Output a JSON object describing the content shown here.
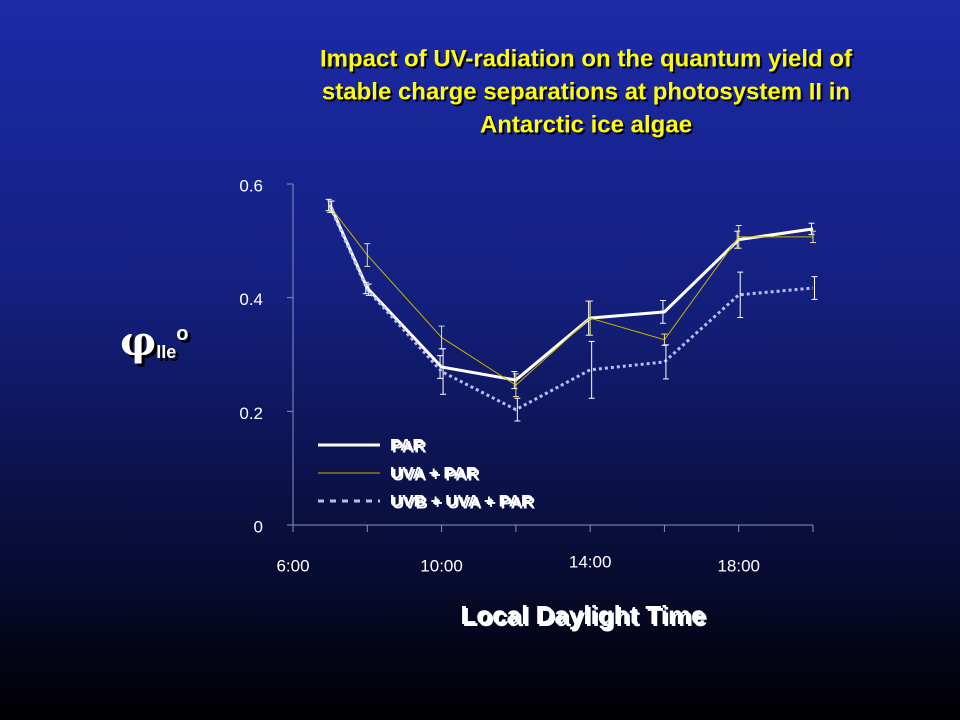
{
  "chart_data": {
    "type": "line",
    "title": [
      "Impact of UV-radiation on the quantum yield of",
      "stable charge separations at photosystem II in",
      "Antarctic ice algae"
    ],
    "xlabel": "Local Daylight Time",
    "ylabel": {
      "symbol": "φ",
      "subscript": "IIe",
      "superscript": "o"
    },
    "x": [
      7,
      8,
      10,
      12,
      14,
      16,
      18,
      20
    ],
    "xlim": [
      6,
      20
    ],
    "xticks": [
      {
        "value": 6,
        "label": "6:00"
      },
      {
        "value": 10,
        "label": "10:00"
      },
      {
        "value": 14,
        "label": "14:00"
      },
      {
        "value": 18,
        "label": "18:00"
      }
    ],
    "xminorticks": [
      8,
      12,
      16,
      20
    ],
    "ylim": [
      0,
      0.6
    ],
    "yticks": [
      0,
      0.2,
      0.4,
      0.6
    ],
    "legend_position": "lower left",
    "series": [
      {
        "name": "PAR",
        "color": "#ffffff",
        "style": "solid",
        "width": 3,
        "values": [
          0.563,
          0.417,
          0.278,
          0.255,
          0.364,
          0.375,
          0.502,
          0.521
        ],
        "errors": [
          0.01,
          0.01,
          0.02,
          0.015,
          0.03,
          0.02,
          0.015,
          0.01
        ]
      },
      {
        "name": "UVA + PAR",
        "color": "#c8b400",
        "style": "solid",
        "width": 1,
        "values": [
          0.56,
          0.475,
          0.33,
          0.246,
          0.364,
          0.326,
          0.507,
          0.507
        ],
        "errors": [
          0.01,
          0.02,
          0.02,
          0.02,
          0.03,
          0.01,
          0.02,
          0.01
        ]
      },
      {
        "name": "UVB + UVA + PAR",
        "color": "#b8bff0",
        "style": "dotted",
        "width": 3,
        "values": [
          0.56,
          0.414,
          0.27,
          0.203,
          0.273,
          0.287,
          0.405,
          0.417
        ],
        "errors": [
          0.01,
          0.01,
          0.04,
          0.02,
          0.05,
          0.03,
          0.04,
          0.02
        ]
      }
    ]
  }
}
